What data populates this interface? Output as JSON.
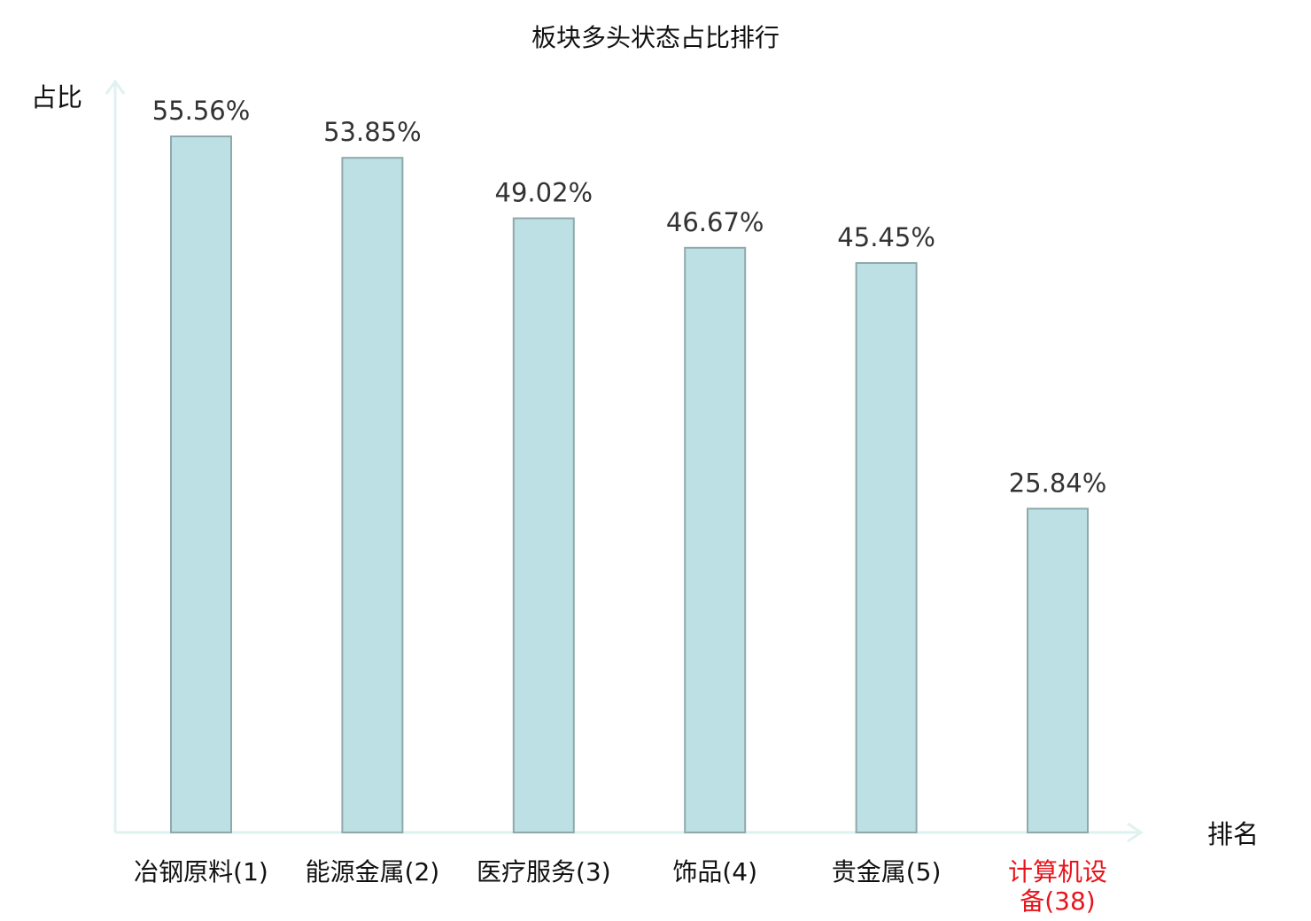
{
  "chart_data": {
    "type": "bar",
    "title": "板块多头状态占比排行",
    "ylabel": "占比",
    "xlabel": "排名",
    "categories": [
      "冶钢原料(1)",
      "能源金属(2)",
      "医疗服务(3)",
      "饰品(4)",
      "贵金属(5)",
      "计算机设备(38)"
    ],
    "values": [
      55.56,
      53.85,
      49.02,
      46.67,
      45.45,
      25.84
    ],
    "value_labels": [
      "55.56%",
      "53.85%",
      "49.02%",
      "46.67%",
      "45.45%",
      "25.84%"
    ],
    "ylim": [
      0,
      55.56
    ],
    "grid": false,
    "legend": "none",
    "highlight_index": 5,
    "colors": {
      "bar_fill": "#bce0e3",
      "bar_stroke": "#8fa9ab",
      "axis": "#dff2ef",
      "text": "#111111",
      "value_text": "#333333",
      "highlight_text": "#e8141c"
    }
  }
}
